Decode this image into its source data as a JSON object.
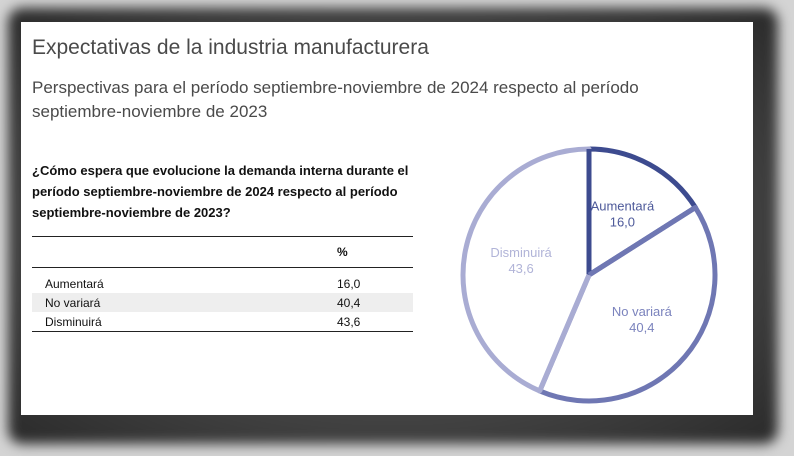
{
  "title": "Expectativas de la industria manufacturera",
  "subtitle": "Perspectivas para el período septiembre-noviembre de 2024 respecto al período septiembre-noviembre de 2023",
  "question": "¿Cómo espera que evolucione la demanda interna durante el período septiembre-noviembre de 2024 respecto al período septiembre-noviembre de 2023?",
  "table": {
    "header": "%",
    "rows": [
      {
        "label": "Aumentará",
        "value": "16,0"
      },
      {
        "label": "No variará",
        "value": "40,4"
      },
      {
        "label": "Disminuirá",
        "value": "43,6"
      }
    ]
  },
  "chart_data": {
    "type": "pie",
    "slices": [
      {
        "label": "Aumentará",
        "value": 16.0,
        "display": "16,0",
        "color": "#3d4b8f",
        "text_color": "#4e5a9a"
      },
      {
        "label": "No variará",
        "value": 40.4,
        "display": "40,4",
        "color": "#6f77b3",
        "text_color": "#7b83bd"
      },
      {
        "label": "Disminuirá",
        "value": 43.6,
        "display": "43,6",
        "color": "#a9acd3",
        "text_color": "#b1b4d8"
      }
    ],
    "start_angle": "12 o'clock",
    "direction": "clockwise",
    "style": "white fill with colored outlines"
  }
}
